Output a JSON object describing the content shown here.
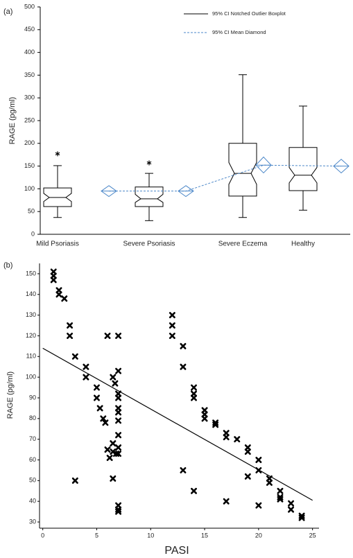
{
  "chart_data": [
    {
      "type": "boxplot",
      "label": "(a)",
      "y_label": "RAGE (pg/ml)",
      "categories": [
        "Mild Psoriasis",
        "Severe Psoriasis",
        "Severe Eczema",
        "Healthy"
      ],
      "ylim": [
        0,
        500
      ],
      "yticks": [
        0,
        50,
        100,
        150,
        200,
        250,
        300,
        350,
        400,
        450,
        500
      ],
      "box_name": "95% CI Notched Outlier Boxplot",
      "box_color": "#000000",
      "boxes": [
        {
          "whisker_low": 37,
          "q1": 61,
          "notch_low": 72,
          "median": 81,
          "notch_high": 90,
          "q3": 102,
          "whisker_high": 151,
          "outliers": [
            177
          ]
        },
        {
          "whisker_low": 30,
          "q1": 61,
          "notch_low": 70,
          "median": 78,
          "notch_high": 88,
          "q3": 104,
          "whisker_high": 134,
          "outliers": [
            157
          ]
        },
        {
          "whisker_low": 37,
          "q1": 84,
          "notch_low": 110,
          "median": 134,
          "notch_high": 158,
          "q3": 200,
          "whisker_high": 351,
          "outliers": []
        },
        {
          "whisker_low": 53,
          "q1": 96,
          "notch_low": 113,
          "median": 130,
          "notch_high": 147,
          "q3": 191,
          "whisker_high": 282,
          "outliers": []
        }
      ],
      "means": {
        "name": "95% CI Mean Diamond",
        "color": "#4a86c8",
        "values": [
          95,
          95,
          152,
          150
        ],
        "ci_low": [
          83,
          83,
          135,
          135
        ],
        "ci_high": [
          107,
          107,
          170,
          165
        ]
      }
    },
    {
      "type": "scatter",
      "label": "(b)",
      "x_label": "PASI",
      "y_label": "RAGE (pg/ml)",
      "xlim": [
        -0.3,
        25.6
      ],
      "ylim": [
        27,
        155
      ],
      "xticks": [
        0,
        5,
        10,
        15,
        20,
        25
      ],
      "yticks": [
        30,
        40,
        50,
        60,
        70,
        80,
        90,
        100,
        110,
        120,
        130,
        140,
        150
      ],
      "color": "#000000",
      "x": [
        1,
        1,
        1,
        1.5,
        1.5,
        2,
        2.5,
        2.5,
        3,
        3,
        4,
        4,
        5,
        5,
        5.3,
        5.6,
        5.8,
        6,
        6,
        6.2,
        6.5,
        6.5,
        6.5,
        6.5,
        6.7,
        6.8,
        7,
        7,
        7,
        7,
        7,
        7,
        7,
        7,
        7,
        7,
        7,
        7,
        7,
        12,
        12,
        12,
        13,
        13,
        13,
        14,
        14,
        14,
        14,
        15,
        15,
        15,
        16,
        16,
        17,
        17,
        17,
        18,
        19,
        19,
        19,
        20,
        20,
        20,
        21,
        21,
        22,
        22,
        22,
        23,
        23,
        24,
        24
      ],
      "values": [
        151,
        149,
        147,
        142,
        140,
        138,
        125,
        120,
        110,
        50,
        105,
        100,
        95,
        90,
        85,
        80,
        78,
        120,
        65,
        61,
        100,
        68,
        64,
        51,
        97,
        63,
        120,
        103,
        92,
        90,
        85,
        83,
        79,
        72,
        66,
        63,
        38,
        36,
        35,
        130,
        125,
        120,
        115,
        105,
        55,
        95,
        92,
        90,
        45,
        84,
        82,
        80,
        78,
        77,
        73,
        71,
        40,
        70,
        66,
        64,
        52,
        60,
        55,
        38,
        51,
        49,
        45,
        42,
        41,
        39,
        36,
        33,
        32
      ],
      "fit_line": {
        "x": [
          0,
          25
        ],
        "values": [
          114,
          40.5
        ]
      }
    }
  ]
}
